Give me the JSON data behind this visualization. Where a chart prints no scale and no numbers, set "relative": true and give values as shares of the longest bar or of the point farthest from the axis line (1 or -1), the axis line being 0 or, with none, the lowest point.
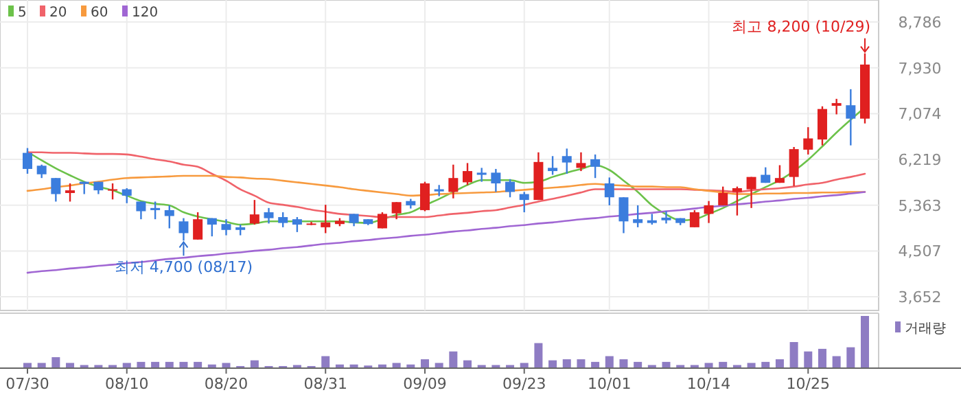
{
  "chart_data": [
    {
      "type": "candlestick",
      "categories": [
        "07/30",
        null,
        null,
        null,
        null,
        null,
        null,
        "08/10",
        null,
        null,
        null,
        null,
        null,
        null,
        "08/20",
        null,
        null,
        null,
        null,
        null,
        null,
        "08/31",
        null,
        null,
        null,
        null,
        null,
        null,
        "09/09",
        null,
        null,
        null,
        null,
        null,
        null,
        "09/23",
        null,
        null,
        null,
        null,
        null,
        "10/01",
        null,
        null,
        null,
        null,
        null,
        null,
        "10/14",
        null,
        null,
        null,
        null,
        null,
        null,
        "10/25",
        null,
        null,
        null,
        null
      ],
      "ohlc": [
        [
          6340,
          6430,
          5950,
          6040
        ],
        [
          6100,
          6120,
          5870,
          5940
        ],
        [
          5870,
          5870,
          5430,
          5570
        ],
        [
          5590,
          5770,
          5430,
          5640
        ],
        [
          5800,
          5800,
          5570,
          5760
        ],
        [
          5800,
          5800,
          5570,
          5640
        ],
        [
          5640,
          5770,
          5470,
          5660
        ],
        [
          5660,
          5680,
          5400,
          5540
        ],
        [
          5430,
          5430,
          5100,
          5250
        ],
        [
          5310,
          5430,
          5100,
          5270
        ],
        [
          5270,
          5360,
          4930,
          5160
        ],
        [
          5060,
          5120,
          4700,
          4840
        ],
        [
          4720,
          5230,
          4720,
          5100
        ],
        [
          5120,
          5120,
          4780,
          5000
        ],
        [
          5010,
          5100,
          4800,
          4900
        ],
        [
          4950,
          5000,
          4800,
          4900
        ],
        [
          5020,
          5460,
          5000,
          5190
        ],
        [
          5230,
          5310,
          5020,
          5120
        ],
        [
          5140,
          5230,
          4950,
          5030
        ],
        [
          5100,
          5140,
          4860,
          5000
        ],
        [
          5000,
          5050,
          4990,
          5020
        ],
        [
          4950,
          5370,
          4840,
          5040
        ],
        [
          5010,
          5120,
          4970,
          5070
        ],
        [
          5200,
          5200,
          4970,
          5030
        ],
        [
          5100,
          5100,
          4990,
          5010
        ],
        [
          4930,
          5230,
          4930,
          5200
        ],
        [
          5210,
          5420,
          5100,
          5420
        ],
        [
          5440,
          5480,
          5300,
          5360
        ],
        [
          5270,
          5800,
          5250,
          5770
        ],
        [
          5660,
          5740,
          5530,
          5620
        ],
        [
          5610,
          6120,
          5490,
          5870
        ],
        [
          5790,
          6150,
          5740,
          6000
        ],
        [
          5970,
          6060,
          5800,
          5930
        ],
        [
          5970,
          6040,
          5610,
          5770
        ],
        [
          5800,
          5850,
          5510,
          5610
        ],
        [
          5570,
          5610,
          5230,
          5460
        ],
        [
          5460,
          6350,
          5460,
          6170
        ],
        [
          6060,
          6280,
          5930,
          6000
        ],
        [
          6280,
          6420,
          5950,
          6160
        ],
        [
          6060,
          6350,
          6000,
          6150
        ],
        [
          6220,
          6310,
          5870,
          6080
        ],
        [
          5770,
          5880,
          5360,
          5510
        ],
        [
          5510,
          5510,
          4840,
          5060
        ],
        [
          5100,
          5360,
          4950,
          5030
        ],
        [
          5080,
          5200,
          5000,
          5030
        ],
        [
          5130,
          5250,
          5020,
          5080
        ],
        [
          5120,
          5120,
          4990,
          5030
        ],
        [
          4950,
          5270,
          4950,
          5230
        ],
        [
          5200,
          5440,
          5030,
          5360
        ],
        [
          5360,
          5710,
          5360,
          5590
        ],
        [
          5610,
          5710,
          5170,
          5680
        ],
        [
          5660,
          5890,
          5310,
          5890
        ],
        [
          5930,
          6070,
          5780,
          5780
        ],
        [
          5780,
          6110,
          5780,
          5870
        ],
        [
          5890,
          6450,
          5720,
          6410
        ],
        [
          6400,
          6820,
          6310,
          6610
        ],
        [
          6590,
          7210,
          6480,
          7160
        ],
        [
          7220,
          7350,
          7060,
          7270
        ],
        [
          7230,
          7530,
          6480,
          6980
        ],
        [
          6980,
          8200,
          6890,
          7990
        ]
      ],
      "colors": [
        "#3b7ddd",
        "#3b7ddd",
        "#3b7ddd",
        "#e02020",
        "#3b7ddd",
        "#3b7ddd",
        "#e02020",
        "#3b7ddd",
        "#3b7ddd",
        "#3b7ddd",
        "#3b7ddd",
        "#3b7ddd",
        "#e02020",
        "#3b7ddd",
        "#3b7ddd",
        "#3b7ddd",
        "#e02020",
        "#3b7ddd",
        "#3b7ddd",
        "#3b7ddd",
        "#e02020",
        "#e02020",
        "#e02020",
        "#3b7ddd",
        "#3b7ddd",
        "#e02020",
        "#e02020",
        "#3b7ddd",
        "#e02020",
        "#3b7ddd",
        "#e02020",
        "#e02020",
        "#3b7ddd",
        "#3b7ddd",
        "#3b7ddd",
        "#3b7ddd",
        "#e02020",
        "#3b7ddd",
        "#3b7ddd",
        "#e02020",
        "#3b7ddd",
        "#3b7ddd",
        "#3b7ddd",
        "#3b7ddd",
        "#3b7ddd",
        "#3b7ddd",
        "#3b7ddd",
        "#e02020",
        "#e02020",
        "#e02020",
        "#e02020",
        "#e02020",
        "#3b7ddd",
        "#e02020",
        "#e02020",
        "#e02020",
        "#e02020",
        "#e02020",
        "#3b7ddd",
        "#e02020"
      ],
      "series": [
        {
          "type": "line",
          "name": "5",
          "color": "#6cc24a",
          "values": [
            6360,
            6200,
            6050,
            5920,
            5800,
            5710,
            5640,
            5540,
            5440,
            5390,
            5360,
            5230,
            5150,
            5100,
            5050,
            5000,
            5020,
            5060,
            5060,
            5060,
            5060,
            5060,
            5060,
            5040,
            5030,
            5100,
            5180,
            5230,
            5360,
            5480,
            5610,
            5740,
            5830,
            5830,
            5830,
            5780,
            5800,
            5890,
            5970,
            6040,
            6110,
            6020,
            5820,
            5610,
            5360,
            5190,
            5080,
            5100,
            5200,
            5310,
            5440,
            5570,
            5700,
            5830,
            6000,
            6210,
            6460,
            6720,
            6960,
            7190
          ]
        },
        {
          "type": "line",
          "name": "20",
          "color": "#f0636a",
          "values": [
            6350,
            6350,
            6340,
            6340,
            6330,
            6320,
            6320,
            6310,
            6270,
            6220,
            6180,
            6120,
            6080,
            5950,
            5820,
            5660,
            5540,
            5410,
            5370,
            5330,
            5280,
            5240,
            5200,
            5180,
            5160,
            5140,
            5140,
            5140,
            5140,
            5170,
            5200,
            5220,
            5250,
            5270,
            5320,
            5370,
            5430,
            5480,
            5540,
            5600,
            5660,
            5660,
            5660,
            5660,
            5660,
            5660,
            5660,
            5650,
            5640,
            5630,
            5610,
            5640,
            5660,
            5680,
            5710,
            5750,
            5780,
            5840,
            5890,
            5950
          ]
        },
        {
          "type": "line",
          "name": "60",
          "color": "#f79a3e",
          "values": [
            5630,
            5660,
            5700,
            5730,
            5770,
            5800,
            5840,
            5870,
            5880,
            5890,
            5900,
            5910,
            5910,
            5910,
            5890,
            5880,
            5860,
            5850,
            5820,
            5790,
            5760,
            5730,
            5700,
            5660,
            5630,
            5600,
            5570,
            5540,
            5550,
            5570,
            5580,
            5590,
            5600,
            5610,
            5630,
            5650,
            5670,
            5690,
            5710,
            5740,
            5760,
            5740,
            5730,
            5710,
            5710,
            5700,
            5700,
            5660,
            5630,
            5600,
            5570,
            5570,
            5580,
            5580,
            5590,
            5590,
            5600,
            5600,
            5610,
            5610
          ]
        },
        {
          "type": "line",
          "name": "120",
          "color": "#a066d3",
          "values": [
            4100,
            4130,
            4150,
            4180,
            4200,
            4230,
            4250,
            4280,
            4300,
            4330,
            4360,
            4380,
            4410,
            4430,
            4460,
            4480,
            4510,
            4530,
            4560,
            4580,
            4610,
            4640,
            4660,
            4690,
            4710,
            4740,
            4760,
            4790,
            4810,
            4840,
            4870,
            4890,
            4920,
            4940,
            4970,
            4990,
            5020,
            5040,
            5070,
            5100,
            5120,
            5150,
            5170,
            5200,
            5220,
            5250,
            5270,
            5300,
            5330,
            5350,
            5380,
            5400,
            5430,
            5450,
            5480,
            5500,
            5530,
            5550,
            5580,
            5610
          ]
        }
      ],
      "ylim": [
        3652,
        8786
      ],
      "yticks": [
        {
          "value": 3652,
          "label": "3,652"
        },
        {
          "value": 4507,
          "label": "4,507"
        },
        {
          "value": 5363,
          "label": "5,363"
        },
        {
          "value": 6219,
          "label": "6,219"
        },
        {
          "value": 7074,
          "label": "7,074"
        },
        {
          "value": 7930,
          "label": "7,930"
        },
        {
          "value": 8786,
          "label": "8,786"
        }
      ],
      "annotations": [
        "최고 8,200 (10/29)",
        "최저 4,700 (08/17)"
      ],
      "grid": true,
      "legend": "top left"
    },
    {
      "type": "bar",
      "relative": true,
      "categories": [
        null,
        null,
        null,
        null,
        null,
        null,
        null,
        null,
        null,
        null,
        null,
        null,
        null,
        null,
        null,
        null,
        null,
        null,
        null,
        null,
        null,
        null,
        null,
        null,
        null,
        null,
        null,
        null,
        null,
        null,
        null,
        null,
        null,
        null,
        null,
        null,
        null,
        null,
        null,
        null,
        null,
        null,
        null,
        null,
        null,
        null,
        null,
        null,
        null,
        null,
        null,
        null,
        null,
        null,
        null,
        null,
        null,
        null,
        null,
        null
      ],
      "series": [
        {
          "name": "거래량",
          "color": "#8e7cc3",
          "values": [
            0.1,
            0.1,
            0.21,
            0.1,
            0.06,
            0.06,
            0.06,
            0.1,
            0.12,
            0.12,
            0.12,
            0.12,
            0.12,
            0.07,
            0.1,
            0.04,
            0.15,
            0.04,
            0.04,
            0.06,
            0.04,
            0.23,
            0.07,
            0.07,
            0.05,
            0.07,
            0.1,
            0.07,
            0.17,
            0.1,
            0.32,
            0.15,
            0.06,
            0.06,
            0.06,
            0.1,
            0.48,
            0.15,
            0.17,
            0.17,
            0.12,
            0.23,
            0.17,
            0.12,
            0.06,
            0.12,
            0.06,
            0.06,
            0.1,
            0.12,
            0.06,
            0.1,
            0.12,
            0.17,
            0.5,
            0.32,
            0.37,
            0.23,
            0.4,
            1
          ]
        }
      ],
      "legend": "top right"
    }
  ]
}
